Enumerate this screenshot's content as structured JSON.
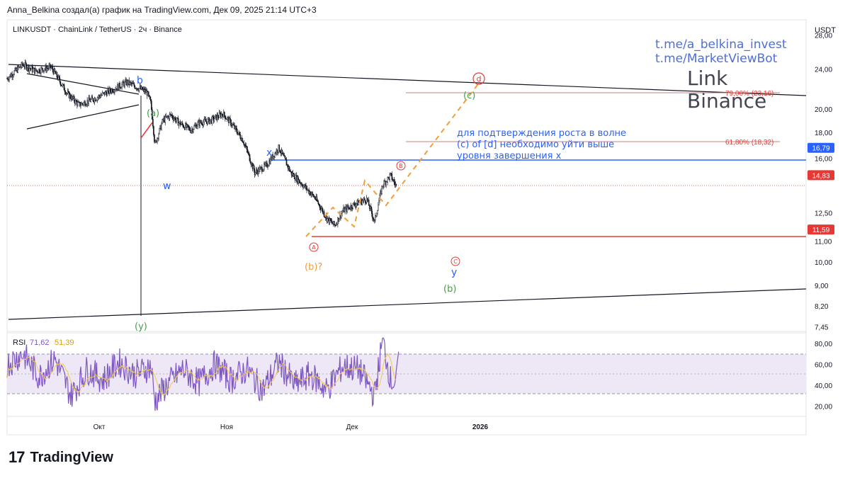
{
  "caption": "Anna_Belkina создал(а) график на TradingView.com, Дек 09, 2025 21:14 UTC+3",
  "symbol_header": "LINKUSDT · ChainLink / TetherUS · 2ч · Binance",
  "currency_label": "USDT",
  "watermark": {
    "link1": "t.me/a_belkina_invest",
    "link2": "t.me/MarketViewBot",
    "line1": "Link",
    "line2": "Binance"
  },
  "annotation_text": [
    "для подтверждения роста в волне",
    "(c) of [d] необходимо уйти выше",
    "уровня завершения x"
  ],
  "fib_labels": {
    "fib79": "79,00% (23,16)",
    "fib618": "61,80% (18,32)"
  },
  "wave_labels": {
    "b": "b",
    "a_paren": "(a)",
    "w": "w",
    "x": "x",
    "y_paren": "(y)",
    "A": "A",
    "B": "B",
    "C": "C",
    "d": "d",
    "c_paren": "(c)",
    "b_q": "(b)?",
    "y": "y",
    "b_paren": "(b)"
  },
  "rsi": {
    "label": "RSI",
    "value1": "71,62",
    "value2": "51,39",
    "levels": [
      80,
      60,
      40,
      20
    ],
    "level_labels": [
      "80,00",
      "60,00",
      "40,00",
      "20,00"
    ]
  },
  "brand": {
    "logo": "17",
    "name": "TradingView"
  },
  "colors": {
    "candle": "#131722",
    "blue_level": "#2962ff",
    "red_level": "#e53935",
    "orange": "#f29d38",
    "green": "#43a047",
    "purple": "#7e57c2",
    "rsi_band": "#ede7f6",
    "watermark_blue": "#4f6fd6"
  },
  "chart_data": {
    "type": "candlestick",
    "y_scale": "log",
    "ylim": [
      7.3,
      30
    ],
    "y_ticks": [
      28.0,
      24.0,
      20.0,
      18.0,
      16.0,
      12.5,
      11.0,
      10.0,
      9.0,
      8.2,
      7.45
    ],
    "y_tick_labels": [
      "28,00",
      "24,00",
      "20,00",
      "18,00",
      "16,00",
      "12,50",
      "11,00",
      "10,00",
      "9,00",
      "8,20",
      "7,45"
    ],
    "x_ticks": [
      "Окт",
      "Ноя",
      "Дек",
      "2026"
    ],
    "price_badges": [
      {
        "label": "16,79",
        "value": 16.79,
        "color": "#2962ff"
      },
      {
        "label": "14,83",
        "value": 14.83,
        "color": "#e53935"
      },
      {
        "label": "11,59",
        "value": 11.59,
        "color": "#e53935"
      }
    ],
    "horizontal_levels": [
      {
        "name": "x-level",
        "value": 16.79
      },
      {
        "name": "A-level",
        "value": 11.59
      },
      {
        "name": "current-price",
        "value": 14.83
      },
      {
        "name": "fib-79",
        "value": 23.16
      },
      {
        "name": "fib-618",
        "value": 18.32
      }
    ],
    "price_path": [
      [
        0.0,
        23.0
      ],
      [
        0.02,
        24.5
      ],
      [
        0.035,
        23.8
      ],
      [
        0.055,
        24.2
      ],
      [
        0.075,
        21.5
      ],
      [
        0.09,
        20.4
      ],
      [
        0.11,
        21.0
      ],
      [
        0.13,
        21.8
      ],
      [
        0.15,
        22.6
      ],
      [
        0.165,
        22.0
      ],
      [
        0.175,
        21.6
      ],
      [
        0.18,
        20.5
      ],
      [
        0.185,
        17.0
      ],
      [
        0.195,
        19.0
      ],
      [
        0.205,
        19.5
      ],
      [
        0.215,
        18.8
      ],
      [
        0.23,
        18.2
      ],
      [
        0.24,
        18.8
      ],
      [
        0.255,
        19.0
      ],
      [
        0.27,
        19.6
      ],
      [
        0.28,
        18.8
      ],
      [
        0.295,
        17.4
      ],
      [
        0.31,
        15.0
      ],
      [
        0.325,
        15.5
      ],
      [
        0.34,
        16.8
      ],
      [
        0.355,
        15.0
      ],
      [
        0.37,
        14.2
      ],
      [
        0.385,
        13.4
      ],
      [
        0.4,
        12.2
      ],
      [
        0.41,
        11.8
      ],
      [
        0.42,
        12.6
      ],
      [
        0.435,
        13.0
      ],
      [
        0.45,
        13.3
      ],
      [
        0.46,
        12.0
      ],
      [
        0.47,
        14.2
      ],
      [
        0.48,
        14.8
      ],
      [
        0.49,
        13.8
      ],
      [
        0.5,
        14.1
      ]
    ],
    "rsi_path": [
      [
        0.0,
        60
      ],
      [
        0.02,
        70
      ],
      [
        0.04,
        48
      ],
      [
        0.06,
        65
      ],
      [
        0.08,
        30
      ],
      [
        0.1,
        55
      ],
      [
        0.12,
        45
      ],
      [
        0.14,
        62
      ],
      [
        0.16,
        50
      ],
      [
        0.18,
        58
      ],
      [
        0.185,
        25
      ],
      [
        0.2,
        40
      ],
      [
        0.22,
        55
      ],
      [
        0.24,
        42
      ],
      [
        0.26,
        60
      ],
      [
        0.28,
        45
      ],
      [
        0.3,
        55
      ],
      [
        0.32,
        35
      ],
      [
        0.34,
        62
      ],
      [
        0.36,
        40
      ],
      [
        0.38,
        50
      ],
      [
        0.4,
        35
      ],
      [
        0.42,
        58
      ],
      [
        0.44,
        55
      ],
      [
        0.46,
        30
      ],
      [
        0.47,
        84
      ],
      [
        0.48,
        45
      ],
      [
        0.49,
        40
      ],
      [
        0.5,
        72
      ]
    ]
  }
}
